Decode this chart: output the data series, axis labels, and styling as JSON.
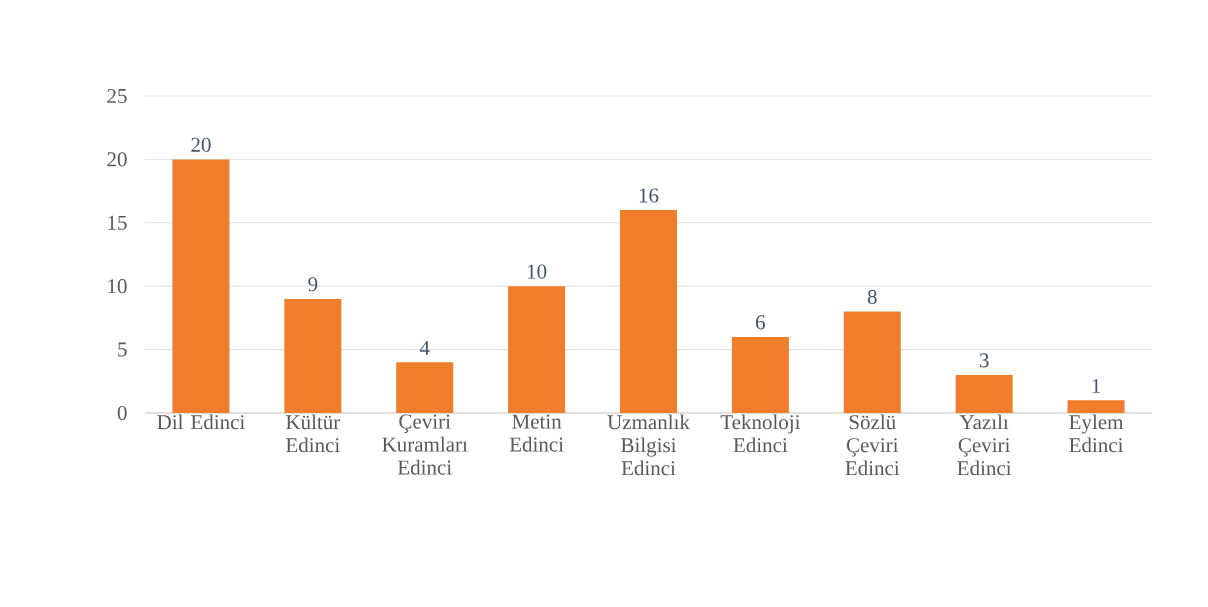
{
  "chart_data": {
    "type": "bar",
    "categories": [
      "Dil Edinci",
      "Kültür Edinci",
      "Çeviri Kuramları Edinci",
      "Metin Edinci",
      "Uzmanlık Bilgisi Edinci",
      "Teknoloji Edinci",
      "Sözlü Çeviri Edinci",
      "Yazılı Çeviri Edinci",
      "Eylem Edinci"
    ],
    "values": [
      20,
      9,
      4,
      10,
      16,
      6,
      8,
      3,
      1
    ],
    "color": "#f07d2a",
    "ylim": [
      0,
      25
    ],
    "yticks": [
      0,
      5,
      10,
      15,
      20,
      25
    ],
    "grid": "y",
    "data_labels": true
  }
}
